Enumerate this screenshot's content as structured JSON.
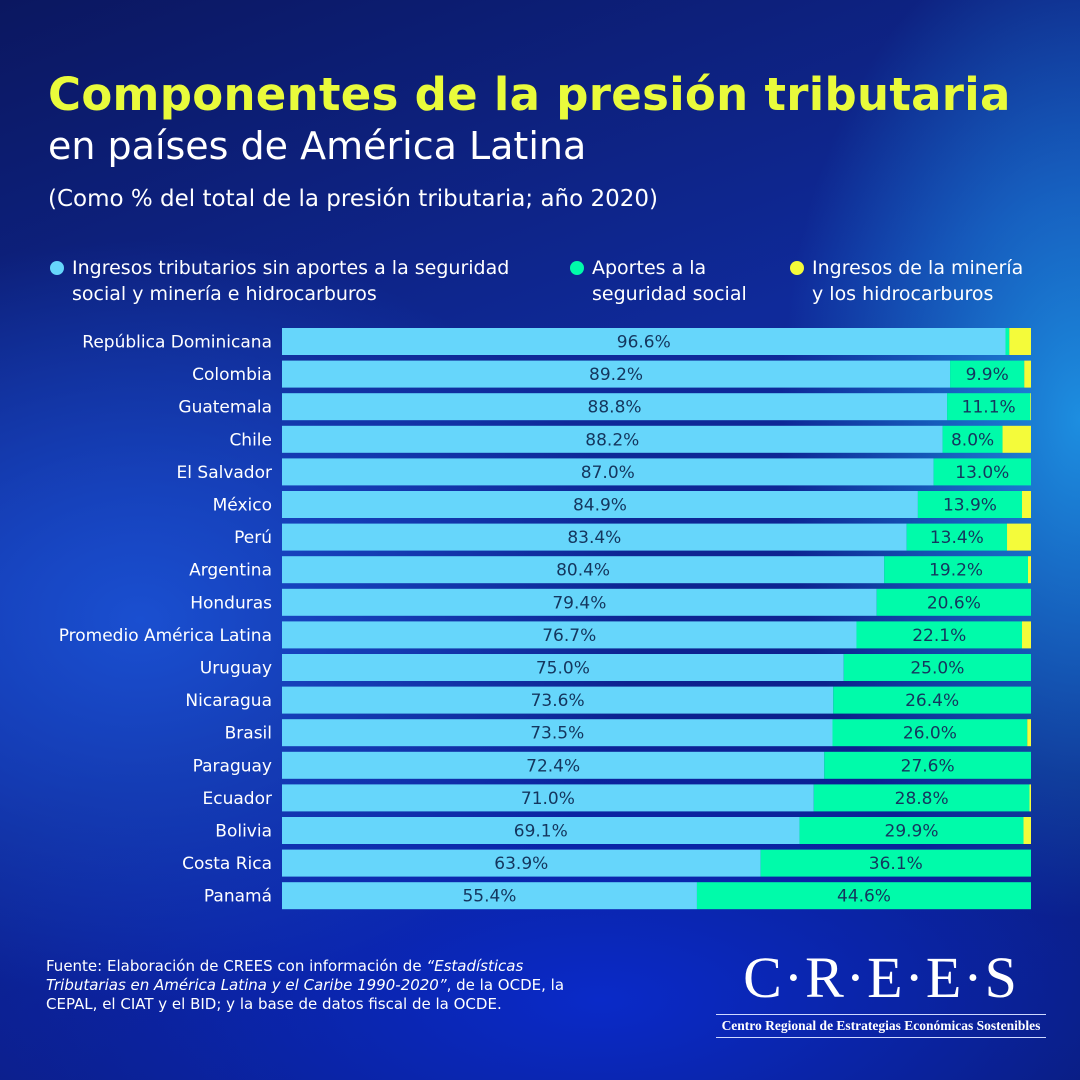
{
  "title_line1": "Componentes de la presión tributaria",
  "title_line2": "en países de América Latina",
  "subtitle": "(Como % del total de la presión tributaria; año 2020)",
  "chart_data": {
    "type": "bar",
    "orientation": "horizontal",
    "stacked": true,
    "xlim": [
      0,
      100
    ],
    "categories": [
      "República Dominicana",
      "Colombia",
      "Guatemala",
      "Chile",
      "El Salvador",
      "México",
      "Perú",
      "Argentina",
      "Honduras",
      "Promedio América Latina",
      "Uruguay",
      "Nicaragua",
      "Brasil",
      "Paraguay",
      "Ecuador",
      "Bolivia",
      "Costa Rica",
      "Panamá"
    ],
    "series": [
      {
        "name": "Ingresos tributarios sin aportes a la seguridad social y minería e hidrocarburos",
        "color": "#66d6fb",
        "values": [
          96.6,
          89.2,
          88.8,
          88.2,
          87.0,
          84.9,
          83.4,
          80.4,
          79.4,
          76.7,
          75.0,
          73.6,
          73.5,
          72.4,
          71.0,
          69.1,
          63.9,
          55.4
        ],
        "labels": [
          "96.6%",
          "89.2%",
          "88.8%",
          "88.2%",
          "87.0%",
          "84.9%",
          "83.4%",
          "80.4%",
          "79.4%",
          "76.7%",
          "75.0%",
          "73.6%",
          "73.5%",
          "72.4%",
          "71.0%",
          "69.1%",
          "63.9%",
          "55.4%"
        ]
      },
      {
        "name": "Aportes a la seguridad social",
        "color": "#00fbaa",
        "values": [
          0.5,
          9.9,
          11.1,
          8.0,
          13.0,
          13.9,
          13.4,
          19.2,
          20.6,
          22.1,
          25.0,
          26.4,
          26.0,
          27.6,
          28.8,
          29.9,
          36.1,
          44.6
        ],
        "labels": [
          "",
          "9.9%",
          "11.1%",
          "8.0%",
          "13.0%",
          "13.9%",
          "13.4%",
          "19.2%",
          "20.6%",
          "22.1%",
          "25.0%",
          "26.4%",
          "26.0%",
          "27.6%",
          "28.8%",
          "29.9%",
          "36.1%",
          "44.6%"
        ]
      },
      {
        "name": "Ingresos de la minería y los hidrocarburos",
        "color": "#f4fb3a",
        "values": [
          2.9,
          0.9,
          0.1,
          3.8,
          0.0,
          1.2,
          3.2,
          0.4,
          0.0,
          1.2,
          0.0,
          0.0,
          0.5,
          0.0,
          0.2,
          1.0,
          0.0,
          0.0
        ]
      }
    ]
  },
  "legend": [
    {
      "label_line1": "Ingresos tributarios sin aportes a la seguridad",
      "label_line2": "social y minería e hidrocarburos"
    },
    {
      "label_line1": "Aportes a la",
      "label_line2": "seguridad social"
    },
    {
      "label_line1": "Ingresos de la minería",
      "label_line2": "y los hidrocarburos"
    }
  ],
  "source": {
    "prefix": "Fuente: Elaboración de CREES con información de ",
    "italic": "“Estadísticas Tributarias en América Latina y el Caribe 1990-2020”",
    "suffix": ", de la OCDE, la CEPAL, el CIAT y el BID; y la base de datos fiscal de la OCDE."
  },
  "logo": {
    "name": "C·R·E·E·S",
    "tagline": "Centro Regional de Estrategias Económicas Sostenibles"
  }
}
